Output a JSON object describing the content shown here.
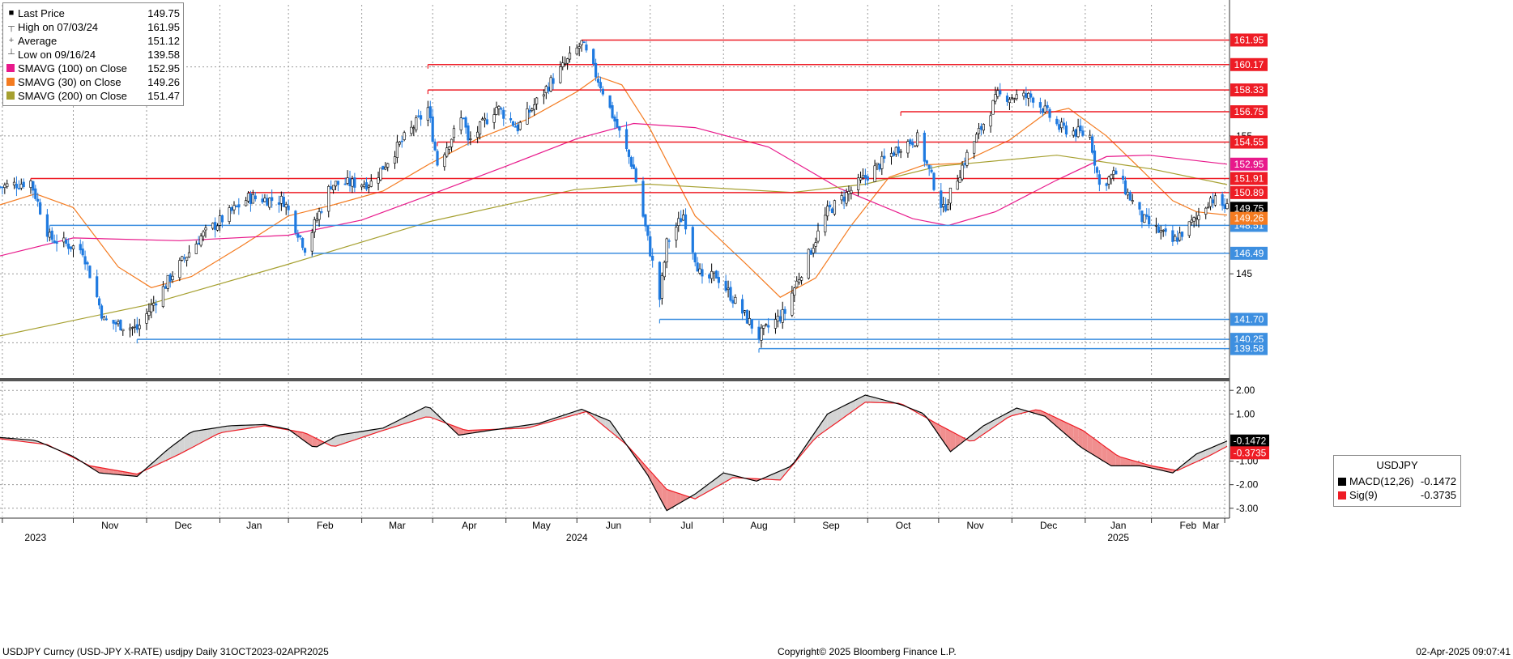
{
  "chart_data": [
    {
      "type": "candlestick",
      "instrument": "USDJPY",
      "x_range": [
        "2023-10-31",
        "2025-04-02"
      ],
      "ylim": [
        137.5,
        164.5
      ],
      "y_ticks": [
        145,
        155
      ],
      "grid": true,
      "legend_position": "top-left",
      "x_month_labels": [
        "Nov",
        "Dec",
        "Jan",
        "Feb",
        "Mar",
        "Apr",
        "May",
        "Jun",
        "Jul",
        "Aug",
        "Sep",
        "Oct",
        "Nov",
        "Dec",
        "Jan",
        "Feb",
        "Mar"
      ],
      "x_year_labels": [
        "2023",
        "2024",
        "2025"
      ],
      "legend": [
        {
          "label": "Last Price",
          "value": "149.75",
          "color": "#000000",
          "glyph": "square"
        },
        {
          "label": "High on 07/03/24",
          "value": "161.95",
          "color": "#555555",
          "glyph": "high"
        },
        {
          "label": "Average",
          "value": "151.12",
          "color": "#555555",
          "glyph": "avg"
        },
        {
          "label": "Low on 09/16/24",
          "value": "139.58",
          "color": "#555555",
          "glyph": "low"
        },
        {
          "label": "SMAVG (100)  on Close",
          "value": "152.95",
          "color": "#e8198b",
          "glyph": "square"
        },
        {
          "label": "SMAVG (30)  on Close",
          "value": "149.26",
          "color": "#f47b20",
          "glyph": "square"
        },
        {
          "label": "SMAVG (200)  on Close",
          "value": "151.47",
          "color": "#a6a030",
          "glyph": "square"
        }
      ],
      "price_path": [
        [
          "2023-10-31",
          151.3
        ],
        [
          "2023-11-13",
          151.7
        ],
        [
          "2023-11-21",
          147.6
        ],
        [
          "2023-12-05",
          146.7
        ],
        [
          "2023-12-14",
          141.6
        ],
        [
          "2023-12-28",
          141.0
        ],
        [
          "2024-01-12",
          145.0
        ],
        [
          "2024-01-24",
          147.7
        ],
        [
          "2024-02-13",
          150.5
        ],
        [
          "2024-02-28",
          150.3
        ],
        [
          "2024-03-08",
          146.9
        ],
        [
          "2024-03-19",
          151.5
        ],
        [
          "2024-04-05",
          151.6
        ],
        [
          "2024-04-18",
          154.6
        ],
        [
          "2024-04-29",
          157.0
        ],
        [
          "2024-05-03",
          153.0
        ],
        [
          "2024-05-14",
          156.5
        ],
        [
          "2024-05-16",
          154.5
        ],
        [
          "2024-05-28",
          157.1
        ],
        [
          "2024-06-06",
          155.6
        ],
        [
          "2024-06-20",
          158.9
        ],
        [
          "2024-07-03",
          161.7
        ],
        [
          "2024-07-11",
          158.7
        ],
        [
          "2024-07-25",
          152.6
        ],
        [
          "2024-08-05",
          143.2
        ],
        [
          "2024-08-08",
          147.2
        ],
        [
          "2024-08-15",
          149.3
        ],
        [
          "2024-08-23",
          144.4
        ],
        [
          "2024-08-29",
          144.9
        ],
        [
          "2024-09-16",
          140.5
        ],
        [
          "2024-09-27",
          142.2
        ],
        [
          "2024-09-30",
          143.6
        ],
        [
          "2024-10-15",
          149.5
        ],
        [
          "2024-10-31",
          152.0
        ],
        [
          "2024-11-15",
          154.3
        ],
        [
          "2024-11-22",
          154.8
        ],
        [
          "2024-12-03",
          149.6
        ],
        [
          "2024-12-13",
          153.6
        ],
        [
          "2024-12-26",
          157.9
        ],
        [
          "2025-01-10",
          157.8
        ],
        [
          "2025-01-21",
          155.6
        ],
        [
          "2025-02-03",
          155.0
        ],
        [
          "2025-02-07",
          151.4
        ],
        [
          "2025-02-14",
          152.3
        ],
        [
          "2025-02-25",
          149.0
        ],
        [
          "2025-03-10",
          147.3
        ],
        [
          "2025-03-20",
          149.0
        ],
        [
          "2025-03-26",
          150.5
        ],
        [
          "2025-04-02",
          149.75
        ]
      ],
      "sma": [
        {
          "name": "SMAVG (30)",
          "color": "#f47b20",
          "points": [
            [
              "2023-10-31",
              150.0
            ],
            [
              "2023-11-15",
              150.8
            ],
            [
              "2023-12-01",
              149.8
            ],
            [
              "2023-12-20",
              145.5
            ],
            [
              "2024-01-03",
              144.0
            ],
            [
              "2024-01-20",
              144.8
            ],
            [
              "2024-02-10",
              147.0
            ],
            [
              "2024-03-01",
              149.2
            ],
            [
              "2024-03-20",
              150.0
            ],
            [
              "2024-04-10",
              151.0
            ],
            [
              "2024-04-30",
              153.0
            ],
            [
              "2024-05-20",
              154.8
            ],
            [
              "2024-06-10",
              156.2
            ],
            [
              "2024-07-01",
              158.2
            ],
            [
              "2024-07-10",
              159.3
            ],
            [
              "2024-07-20",
              158.7
            ],
            [
              "2024-08-01",
              155.5
            ],
            [
              "2024-08-20",
              149.2
            ],
            [
              "2024-09-10",
              145.8
            ],
            [
              "2024-09-25",
              143.3
            ],
            [
              "2024-10-10",
              144.7
            ],
            [
              "2024-10-25",
              148.5
            ],
            [
              "2024-11-10",
              152.0
            ],
            [
              "2024-11-25",
              152.9
            ],
            [
              "2024-12-10",
              153.0
            ],
            [
              "2024-12-31",
              154.7
            ],
            [
              "2025-01-15",
              156.6
            ],
            [
              "2025-01-25",
              157.0
            ],
            [
              "2025-02-10",
              155.0
            ],
            [
              "2025-02-25",
              152.5
            ],
            [
              "2025-03-10",
              150.3
            ],
            [
              "2025-03-20",
              149.5
            ],
            [
              "2025-04-02",
              149.26
            ]
          ]
        },
        {
          "name": "SMAVG (100)",
          "color": "#e8198b",
          "points": [
            [
              "2023-10-31",
              146.3
            ],
            [
              "2023-12-01",
              147.6
            ],
            [
              "2024-01-15",
              147.4
            ],
            [
              "2024-03-01",
              147.8
            ],
            [
              "2024-04-01",
              148.9
            ],
            [
              "2024-05-01",
              150.8
            ],
            [
              "2024-06-01",
              152.8
            ],
            [
              "2024-07-01",
              154.8
            ],
            [
              "2024-07-25",
              155.9
            ],
            [
              "2024-08-20",
              155.6
            ],
            [
              "2024-09-20",
              154.2
            ],
            [
              "2024-10-20",
              151.2
            ],
            [
              "2024-11-20",
              149.0
            ],
            [
              "2024-12-05",
              148.5
            ],
            [
              "2024-12-25",
              149.5
            ],
            [
              "2025-01-20",
              151.8
            ],
            [
              "2025-02-10",
              153.5
            ],
            [
              "2025-02-28",
              153.6
            ],
            [
              "2025-04-02",
              152.95
            ]
          ]
        },
        {
          "name": "SMAVG (200)",
          "color": "#a6a030",
          "points": [
            [
              "2023-10-31",
              140.5
            ],
            [
              "2023-12-31",
              142.7
            ],
            [
              "2024-02-28",
              145.6
            ],
            [
              "2024-04-30",
              148.8
            ],
            [
              "2024-06-30",
              151.1
            ],
            [
              "2024-07-31",
              151.5
            ],
            [
              "2024-08-31",
              151.2
            ],
            [
              "2024-09-30",
              150.9
            ],
            [
              "2024-10-31",
              151.5
            ],
            [
              "2024-12-01",
              152.8
            ],
            [
              "2025-01-20",
              153.6
            ],
            [
              "2025-03-01",
              152.6
            ],
            [
              "2025-04-02",
              151.47
            ]
          ]
        }
      ],
      "resistance_lines": [
        {
          "label": "161.95",
          "value": 161.95,
          "start": "2024-07-03",
          "color": "#ee1c25"
        },
        {
          "label": "160.17",
          "value": 160.17,
          "start": "2024-04-29",
          "color": "#ee1c25"
        },
        {
          "label": "158.33",
          "value": 158.33,
          "start": "2024-04-29",
          "color": "#ee1c25"
        },
        {
          "label": "156.75",
          "value": 156.75,
          "start": "2024-11-15",
          "color": "#ee1c25"
        },
        {
          "label": "154.55",
          "value": 154.55,
          "start": "2024-05-03",
          "color": "#ee1c25"
        },
        {
          "label": "151.91",
          "value": 151.91,
          "start": "2023-11-13",
          "color": "#ee1c25"
        },
        {
          "label": "150.89",
          "value": 150.89,
          "start": "2024-02-13",
          "color": "#ee1c25"
        }
      ],
      "support_lines": [
        {
          "label": "148.51",
          "value": 148.51,
          "start": "2023-11-21",
          "color": "#3d8fe0"
        },
        {
          "label": "146.49",
          "value": 146.49,
          "start": "2024-03-11",
          "color": "#3d8fe0"
        },
        {
          "label": "141.70",
          "value": 141.7,
          "start": "2024-08-05",
          "color": "#3d8fe0"
        },
        {
          "label": "140.25",
          "value": 140.25,
          "start": "2023-12-28",
          "color": "#3d8fe0"
        },
        {
          "label": "139.58",
          "value": 139.58,
          "start": "2024-09-16",
          "color": "#3d8fe0"
        }
      ],
      "current_labels": [
        {
          "label": "152.95",
          "value": 152.95,
          "color": "#e8198b"
        },
        {
          "label": "149.75",
          "value": 149.75,
          "color": "#000000"
        },
        {
          "label": "149.26",
          "value": 149.26,
          "color": "#f47b20"
        }
      ]
    },
    {
      "type": "line",
      "title": "USDJPY",
      "ylim": [
        -3.35,
        2.35
      ],
      "y_ticks": [
        "2.00",
        "1.00",
        "-1.00",
        "-2.00",
        "-3.00"
      ],
      "legend": [
        {
          "label": "MACD(12,26)",
          "value": "-0.1472",
          "color": "#000000"
        },
        {
          "label": "Sig(9)",
          "value": "-0.3735",
          "color": "#ee1c25"
        }
      ],
      "current_labels": [
        {
          "label": "-0.1472",
          "value": -0.1472,
          "color": "#000000"
        },
        {
          "label": "-0.3735",
          "value": -0.3735,
          "color": "#ee1c25"
        }
      ],
      "series": [
        {
          "name": "MACD(12,26)",
          "color": "#000000",
          "points": [
            [
              "2023-10-31",
              0.0
            ],
            [
              "2023-11-15",
              -0.12
            ],
            [
              "2023-12-01",
              -0.8
            ],
            [
              "2023-12-12",
              -1.5
            ],
            [
              "2023-12-28",
              -1.65
            ],
            [
              "2024-01-10",
              -0.5
            ],
            [
              "2024-01-20",
              0.25
            ],
            [
              "2024-02-05",
              0.5
            ],
            [
              "2024-02-20",
              0.55
            ],
            [
              "2024-03-01",
              0.35
            ],
            [
              "2024-03-12",
              -0.45
            ],
            [
              "2024-03-22",
              0.1
            ],
            [
              "2024-04-10",
              0.4
            ],
            [
              "2024-04-29",
              1.35
            ],
            [
              "2024-05-12",
              0.1
            ],
            [
              "2024-05-25",
              0.3
            ],
            [
              "2024-06-15",
              0.6
            ],
            [
              "2024-07-03",
              1.2
            ],
            [
              "2024-07-15",
              0.7
            ],
            [
              "2024-07-31",
              -1.6
            ],
            [
              "2024-08-08",
              -3.1
            ],
            [
              "2024-08-20",
              -2.4
            ],
            [
              "2024-09-01",
              -1.5
            ],
            [
              "2024-09-15",
              -1.85
            ],
            [
              "2024-09-30",
              -1.2
            ],
            [
              "2024-10-15",
              1.0
            ],
            [
              "2024-10-31",
              1.8
            ],
            [
              "2024-11-15",
              1.4
            ],
            [
              "2024-11-25",
              1.0
            ],
            [
              "2024-12-06",
              -0.6
            ],
            [
              "2024-12-20",
              0.5
            ],
            [
              "2025-01-03",
              1.25
            ],
            [
              "2025-01-15",
              0.9
            ],
            [
              "2025-01-30",
              -0.4
            ],
            [
              "2025-02-12",
              -1.2
            ],
            [
              "2025-02-25",
              -1.2
            ],
            [
              "2025-03-10",
              -1.5
            ],
            [
              "2025-03-20",
              -0.7
            ],
            [
              "2025-04-02",
              -0.1472
            ]
          ]
        },
        {
          "name": "Sig(9)",
          "color": "#ee1c25",
          "points": [
            [
              "2023-10-31",
              -0.05
            ],
            [
              "2023-11-20",
              -0.3
            ],
            [
              "2023-12-08",
              -1.2
            ],
            [
              "2023-12-28",
              -1.55
            ],
            [
              "2024-01-15",
              -0.7
            ],
            [
              "2024-02-01",
              0.2
            ],
            [
              "2024-02-20",
              0.5
            ],
            [
              "2024-03-08",
              0.2
            ],
            [
              "2024-03-20",
              -0.4
            ],
            [
              "2024-04-10",
              0.3
            ],
            [
              "2024-04-29",
              0.9
            ],
            [
              "2024-05-15",
              0.3
            ],
            [
              "2024-06-10",
              0.4
            ],
            [
              "2024-07-05",
              1.1
            ],
            [
              "2024-07-22",
              -0.3
            ],
            [
              "2024-08-08",
              -2.2
            ],
            [
              "2024-08-20",
              -2.6
            ],
            [
              "2024-09-05",
              -1.7
            ],
            [
              "2024-09-25",
              -1.8
            ],
            [
              "2024-10-10",
              0.0
            ],
            [
              "2024-10-31",
              1.5
            ],
            [
              "2024-11-15",
              1.45
            ],
            [
              "2024-11-30",
              0.6
            ],
            [
              "2024-12-15",
              -0.2
            ],
            [
              "2024-12-31",
              0.9
            ],
            [
              "2025-01-12",
              1.2
            ],
            [
              "2025-01-31",
              0.3
            ],
            [
              "2025-02-15",
              -0.8
            ],
            [
              "2025-03-01",
              -1.2
            ],
            [
              "2025-03-12",
              -1.4
            ],
            [
              "2025-03-25",
              -0.8
            ],
            [
              "2025-04-02",
              -0.3735
            ]
          ]
        }
      ]
    }
  ],
  "footer": {
    "left": "USDJPY Curncy (USD-JPY X-RATE) usdjpy  Daily 31OCT2023-02APR2025",
    "center": "Copyright© 2025 Bloomberg Finance L.P.",
    "right": "02-Apr-2025 09:07:41"
  }
}
